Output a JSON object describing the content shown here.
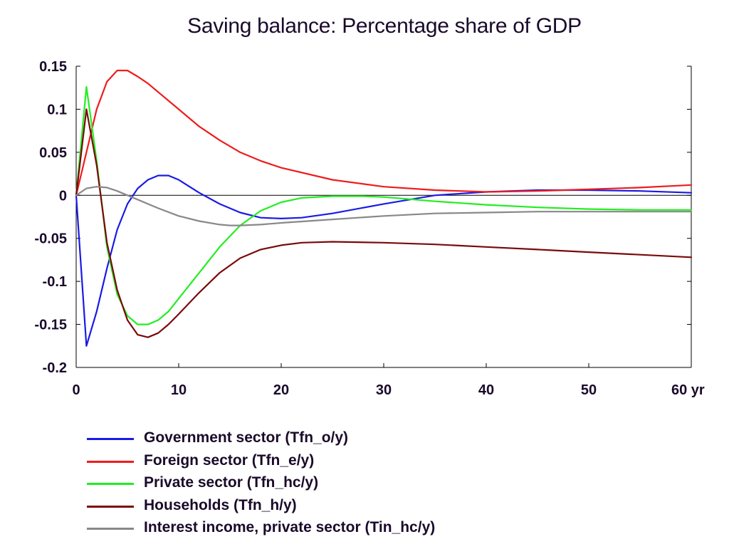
{
  "chart_data": {
    "type": "line",
    "title": "Saving balance: Percentage share of GDP",
    "xlabel": "",
    "ylabel": "",
    "x_unit": "yr",
    "xlim": [
      0,
      60
    ],
    "ylim": [
      -0.2,
      0.15
    ],
    "x_ticks": [
      "0",
      "10",
      "20",
      "30",
      "40",
      "50",
      "60 yr"
    ],
    "y_ticks": [
      "0.15",
      "0.1",
      "0.05",
      "0",
      "-0.05",
      "-0.1",
      "-0.15",
      "-0.2"
    ],
    "zero_line": true,
    "grid": false,
    "legend_position": "bottom",
    "series": [
      {
        "name": "Government sector (Tfn_o/y)",
        "color": "#1a1ae6",
        "x": [
          0,
          1,
          2,
          3,
          4,
          5,
          6,
          7,
          8,
          9,
          10,
          12,
          14,
          16,
          18,
          20,
          22,
          25,
          30,
          35,
          40,
          45,
          50,
          55,
          60
        ],
        "y": [
          0,
          -0.175,
          -0.135,
          -0.085,
          -0.04,
          -0.01,
          0.008,
          0.018,
          0.023,
          0.023,
          0.018,
          0.003,
          -0.01,
          -0.02,
          -0.026,
          -0.027,
          -0.026,
          -0.021,
          -0.01,
          0.0,
          0.004,
          0.006,
          0.006,
          0.005,
          0.003
        ]
      },
      {
        "name": "Foreign sector (Tfn_e/y)",
        "color": "#ee1c1c",
        "x": [
          0,
          1,
          2,
          3,
          4,
          5,
          6,
          7,
          8,
          10,
          12,
          14,
          16,
          18,
          20,
          25,
          30,
          35,
          40,
          45,
          50,
          55,
          60
        ],
        "y": [
          0,
          0.05,
          0.1,
          0.132,
          0.145,
          0.145,
          0.138,
          0.13,
          0.12,
          0.1,
          0.08,
          0.064,
          0.05,
          0.04,
          0.032,
          0.018,
          0.01,
          0.006,
          0.004,
          0.005,
          0.007,
          0.009,
          0.012
        ]
      },
      {
        "name": "Private sector (Tfn_hc/y)",
        "color": "#22ee22",
        "x": [
          0,
          1,
          2,
          3,
          4,
          5,
          6,
          7,
          8,
          9,
          10,
          12,
          14,
          16,
          18,
          20,
          22,
          25,
          28,
          30,
          35,
          40,
          45,
          50,
          55,
          60
        ],
        "y": [
          0,
          0.126,
          0.04,
          -0.06,
          -0.115,
          -0.14,
          -0.15,
          -0.15,
          -0.145,
          -0.135,
          -0.12,
          -0.09,
          -0.06,
          -0.035,
          -0.018,
          -0.008,
          -0.003,
          -0.001,
          -0.001,
          -0.002,
          -0.007,
          -0.011,
          -0.014,
          -0.016,
          -0.017,
          -0.017
        ]
      },
      {
        "name": "Households (Tfn_h/y)",
        "color": "#7a0a0a",
        "x": [
          0,
          1,
          2,
          3,
          4,
          5,
          6,
          7,
          8,
          9,
          10,
          12,
          14,
          16,
          18,
          20,
          22,
          25,
          30,
          35,
          40,
          45,
          50,
          55,
          60
        ],
        "y": [
          0,
          0.1,
          0.035,
          -0.055,
          -0.11,
          -0.145,
          -0.162,
          -0.165,
          -0.16,
          -0.15,
          -0.138,
          -0.113,
          -0.09,
          -0.073,
          -0.063,
          -0.058,
          -0.055,
          -0.054,
          -0.055,
          -0.057,
          -0.06,
          -0.063,
          -0.066,
          -0.069,
          -0.072
        ]
      },
      {
        "name": "Interest income, private sector (Tin_hc/y)",
        "color": "#888888",
        "x": [
          0,
          1,
          2,
          3,
          4,
          5,
          6,
          8,
          10,
          12,
          14,
          15,
          16,
          18,
          20,
          25,
          30,
          35,
          40,
          45,
          50,
          55,
          60
        ],
        "y": [
          0,
          0.008,
          0.01,
          0.009,
          0.005,
          0.0,
          -0.005,
          -0.015,
          -0.024,
          -0.03,
          -0.034,
          -0.035,
          -0.035,
          -0.034,
          -0.032,
          -0.028,
          -0.024,
          -0.021,
          -0.02,
          -0.019,
          -0.019,
          -0.019,
          -0.019
        ]
      }
    ]
  }
}
